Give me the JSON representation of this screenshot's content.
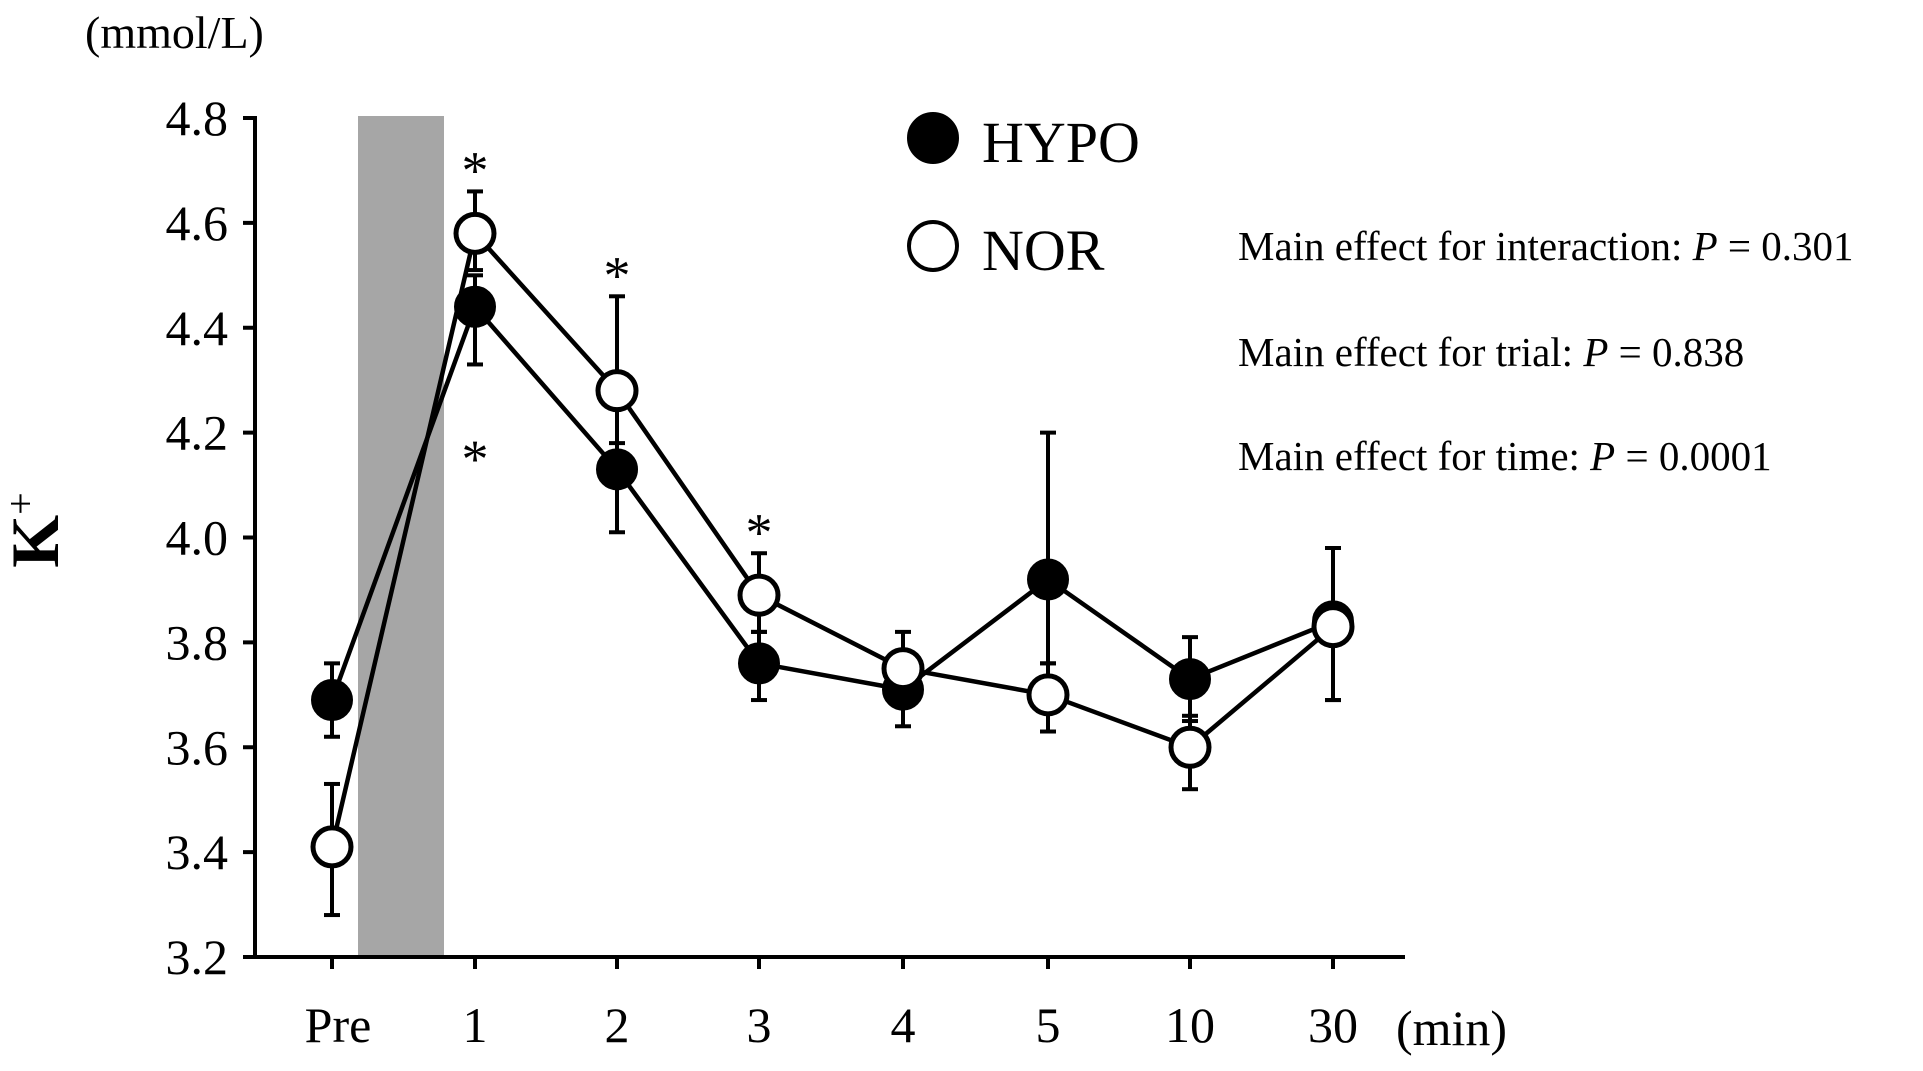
{
  "chart_data": {
    "type": "line",
    "title": "",
    "xlabel": "(min)",
    "ylabel": "K",
    "ylabel_superscript": "+",
    "yunit": "(mmol/L)",
    "categories": [
      "Pre",
      "1",
      "2",
      "3",
      "4",
      "5",
      "10",
      "30"
    ],
    "ylim": [
      3.2,
      4.8
    ],
    "yticks": [
      "3.2",
      "3.4",
      "3.6",
      "3.8",
      "4.0",
      "4.2",
      "4.4",
      "4.6",
      "4.8"
    ],
    "shaded_region": {
      "from": "Pre",
      "to": "1",
      "color": "#a6a6a6"
    },
    "series": [
      {
        "name": "HYPO",
        "marker": "filled-circle",
        "values": [
          3.69,
          4.44,
          4.13,
          3.76,
          3.71,
          3.92,
          3.73,
          3.84
        ],
        "error_upper": [
          0.07,
          0.06,
          0.12,
          0.06,
          0.06,
          0.28,
          0.08,
          0.14
        ],
        "error_lower": [
          0.07,
          0.11,
          0.12,
          0.07,
          0.07,
          0.16,
          0.08,
          0.15
        ]
      },
      {
        "name": "NOR",
        "marker": "open-circle",
        "values": [
          3.41,
          4.58,
          4.28,
          3.89,
          3.75,
          3.7,
          3.6,
          3.83
        ],
        "error_upper": [
          0.12,
          0.08,
          0.18,
          0.08,
          0.07,
          0.06,
          0.06,
          0.15
        ],
        "error_lower": [
          0.13,
          0.07,
          0.1,
          0.07,
          0.07,
          0.07,
          0.08,
          0.14
        ]
      }
    ],
    "annotations": [
      {
        "text": "*",
        "category": "1",
        "y": 4.73
      },
      {
        "text": "*",
        "category": "1",
        "y": 4.18
      },
      {
        "text": "*",
        "category": "2",
        "y": 4.53
      },
      {
        "text": "*",
        "category": "3",
        "y": 4.04
      }
    ],
    "stats": [
      {
        "prefix": "Main effect for interaction: ",
        "p": "P",
        "suffix": " = 0.301"
      },
      {
        "prefix": "Main effect for trial: ",
        "p": "P",
        "suffix": " = 0.838"
      },
      {
        "prefix": "Main effect for time: ",
        "p": "P",
        "suffix": " = 0.0001"
      }
    ]
  }
}
